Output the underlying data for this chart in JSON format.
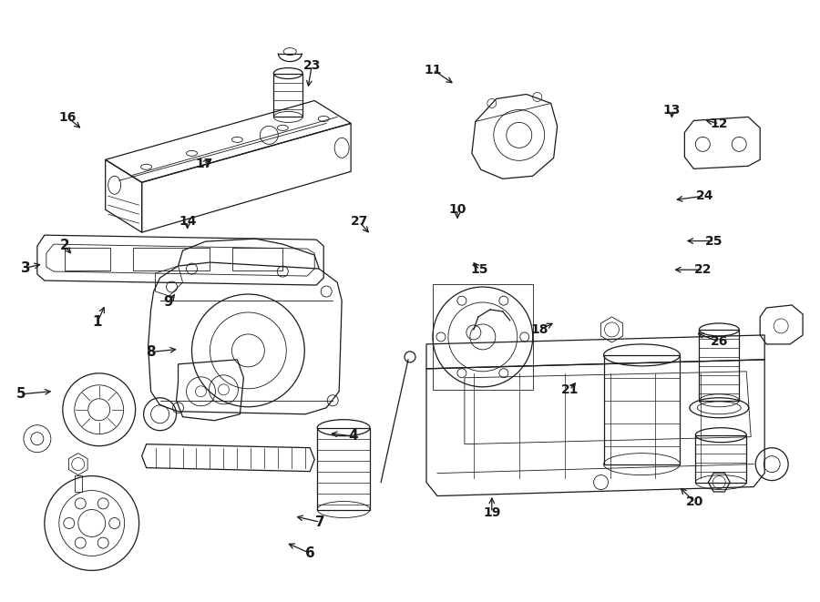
{
  "bg_color": "#ffffff",
  "line_color": "#1a1a1a",
  "figsize": [
    9.0,
    6.61
  ],
  "dpi": 100,
  "lw": 0.9,
  "labels": {
    "1": [
      0.118,
      0.535,
      0.128,
      0.505
    ],
    "2": [
      0.078,
      0.408,
      0.088,
      0.425
    ],
    "3": [
      0.03,
      0.445,
      0.052,
      0.438
    ],
    "4": [
      0.43,
      0.725,
      0.4,
      0.72
    ],
    "5": [
      0.025,
      0.655,
      0.065,
      0.65
    ],
    "6": [
      0.378,
      0.92,
      0.348,
      0.902
    ],
    "7": [
      0.39,
      0.868,
      0.358,
      0.858
    ],
    "8": [
      0.183,
      0.585,
      0.218,
      0.58
    ],
    "9": [
      0.205,
      0.502,
      0.215,
      0.485
    ],
    "10": [
      0.558,
      0.348,
      0.558,
      0.368
    ],
    "11": [
      0.528,
      0.115,
      0.555,
      0.14
    ],
    "12": [
      0.878,
      0.205,
      0.858,
      0.198
    ],
    "13": [
      0.82,
      0.182,
      0.82,
      0.2
    ],
    "14": [
      0.228,
      0.368,
      0.228,
      0.385
    ],
    "15": [
      0.585,
      0.448,
      0.575,
      0.432
    ],
    "16": [
      0.082,
      0.195,
      0.1,
      0.215
    ],
    "17": [
      0.248,
      0.272,
      0.258,
      0.262
    ],
    "18": [
      0.658,
      0.548,
      0.678,
      0.535
    ],
    "19": [
      0.6,
      0.852,
      0.6,
      0.822
    ],
    "20": [
      0.848,
      0.835,
      0.828,
      0.808
    ],
    "21": [
      0.695,
      0.648,
      0.705,
      0.632
    ],
    "22": [
      0.858,
      0.448,
      0.82,
      0.448
    ],
    "23": [
      0.38,
      0.108,
      0.375,
      0.148
    ],
    "24": [
      0.86,
      0.325,
      0.822,
      0.332
    ],
    "25": [
      0.872,
      0.4,
      0.835,
      0.4
    ],
    "26": [
      0.878,
      0.568,
      0.848,
      0.552
    ],
    "27": [
      0.438,
      0.368,
      0.452,
      0.39
    ]
  }
}
